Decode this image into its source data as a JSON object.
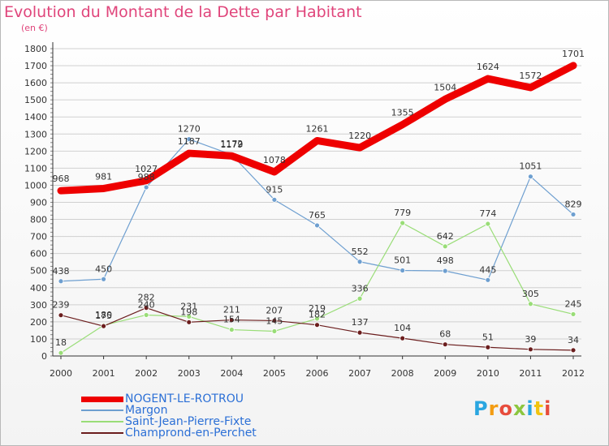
{
  "header": {
    "title": "Evolution du Montant de la Dette par Habitant",
    "unit": "(en €)"
  },
  "logo": {
    "text": "Proxiti",
    "colors": [
      "#2aa6e0",
      "#f39c12",
      "#e74c3c",
      "#8cc63f",
      "#2aa6e0",
      "#f1c40f",
      "#e74c3c"
    ]
  },
  "colors": {
    "title": "#e0457b",
    "legend_text": "#2b6fd6",
    "grid": "#d0d0d0",
    "axis": "#333333"
  },
  "chart_data": {
    "type": "line",
    "title": "Evolution du Montant de la Dette par Habitant",
    "subtitle": "(en €)",
    "xlabel": "",
    "ylabel": "",
    "x": [
      "2000",
      "2001",
      "2002",
      "2003",
      "2004",
      "2005",
      "2006",
      "2007",
      "2008",
      "2009",
      "2010",
      "2011",
      "2012"
    ],
    "yticks": [
      "0",
      "100",
      "200",
      "300",
      "400",
      "500",
      "600",
      "700",
      "800",
      "900",
      "1000",
      "1100",
      "1200",
      "1300",
      "1400",
      "1500",
      "1600",
      "1700",
      "1800"
    ],
    "ylim": [
      0,
      1800
    ],
    "grid": "horizontal",
    "legend_position": "bottom-left",
    "series": [
      {
        "name": "NOGENT-LE-ROTROU",
        "color": "#ee0000",
        "values": [
          968,
          981,
          1027,
          1187,
          1172,
          1078,
          1261,
          1220,
          1355,
          1504,
          1624,
          1572,
          1701
        ]
      },
      {
        "name": "Margon",
        "color": "#6e9fd0",
        "values": [
          438,
          450,
          988,
          1270,
          1179,
          915,
          765,
          552,
          501,
          498,
          445,
          1051,
          829
        ]
      },
      {
        "name": "Saint-Jean-Pierre-Fixte",
        "color": "#99dd77",
        "values": [
          18,
          180,
          240,
          231,
          154,
          145,
          219,
          336,
          779,
          642,
          774,
          305,
          245
        ]
      },
      {
        "name": "Champrond-en-Perchet",
        "color": "#6b1d1d",
        "values": [
          239,
          175,
          282,
          198,
          211,
          207,
          182,
          137,
          104,
          68,
          51,
          39,
          34
        ]
      }
    ],
    "labels": [
      [
        "968",
        "981",
        "1027",
        "1187",
        "1172",
        "1078",
        "1261",
        "1220",
        "1355",
        "1504",
        "1624",
        "1572",
        "1701"
      ],
      [
        "438",
        "450",
        "988",
        "1270",
        "1179",
        "915",
        "765",
        "552",
        "501",
        "498",
        "445",
        "1051",
        "829"
      ],
      [
        "18",
        "180",
        "240",
        "231",
        "154",
        "145",
        "219",
        "336",
        "779",
        "642",
        "774",
        "305",
        "245"
      ],
      [
        "239",
        "175",
        "282",
        "198",
        "211",
        "207",
        "182",
        "137",
        "104",
        "68",
        "51",
        "39",
        "34"
      ]
    ]
  }
}
